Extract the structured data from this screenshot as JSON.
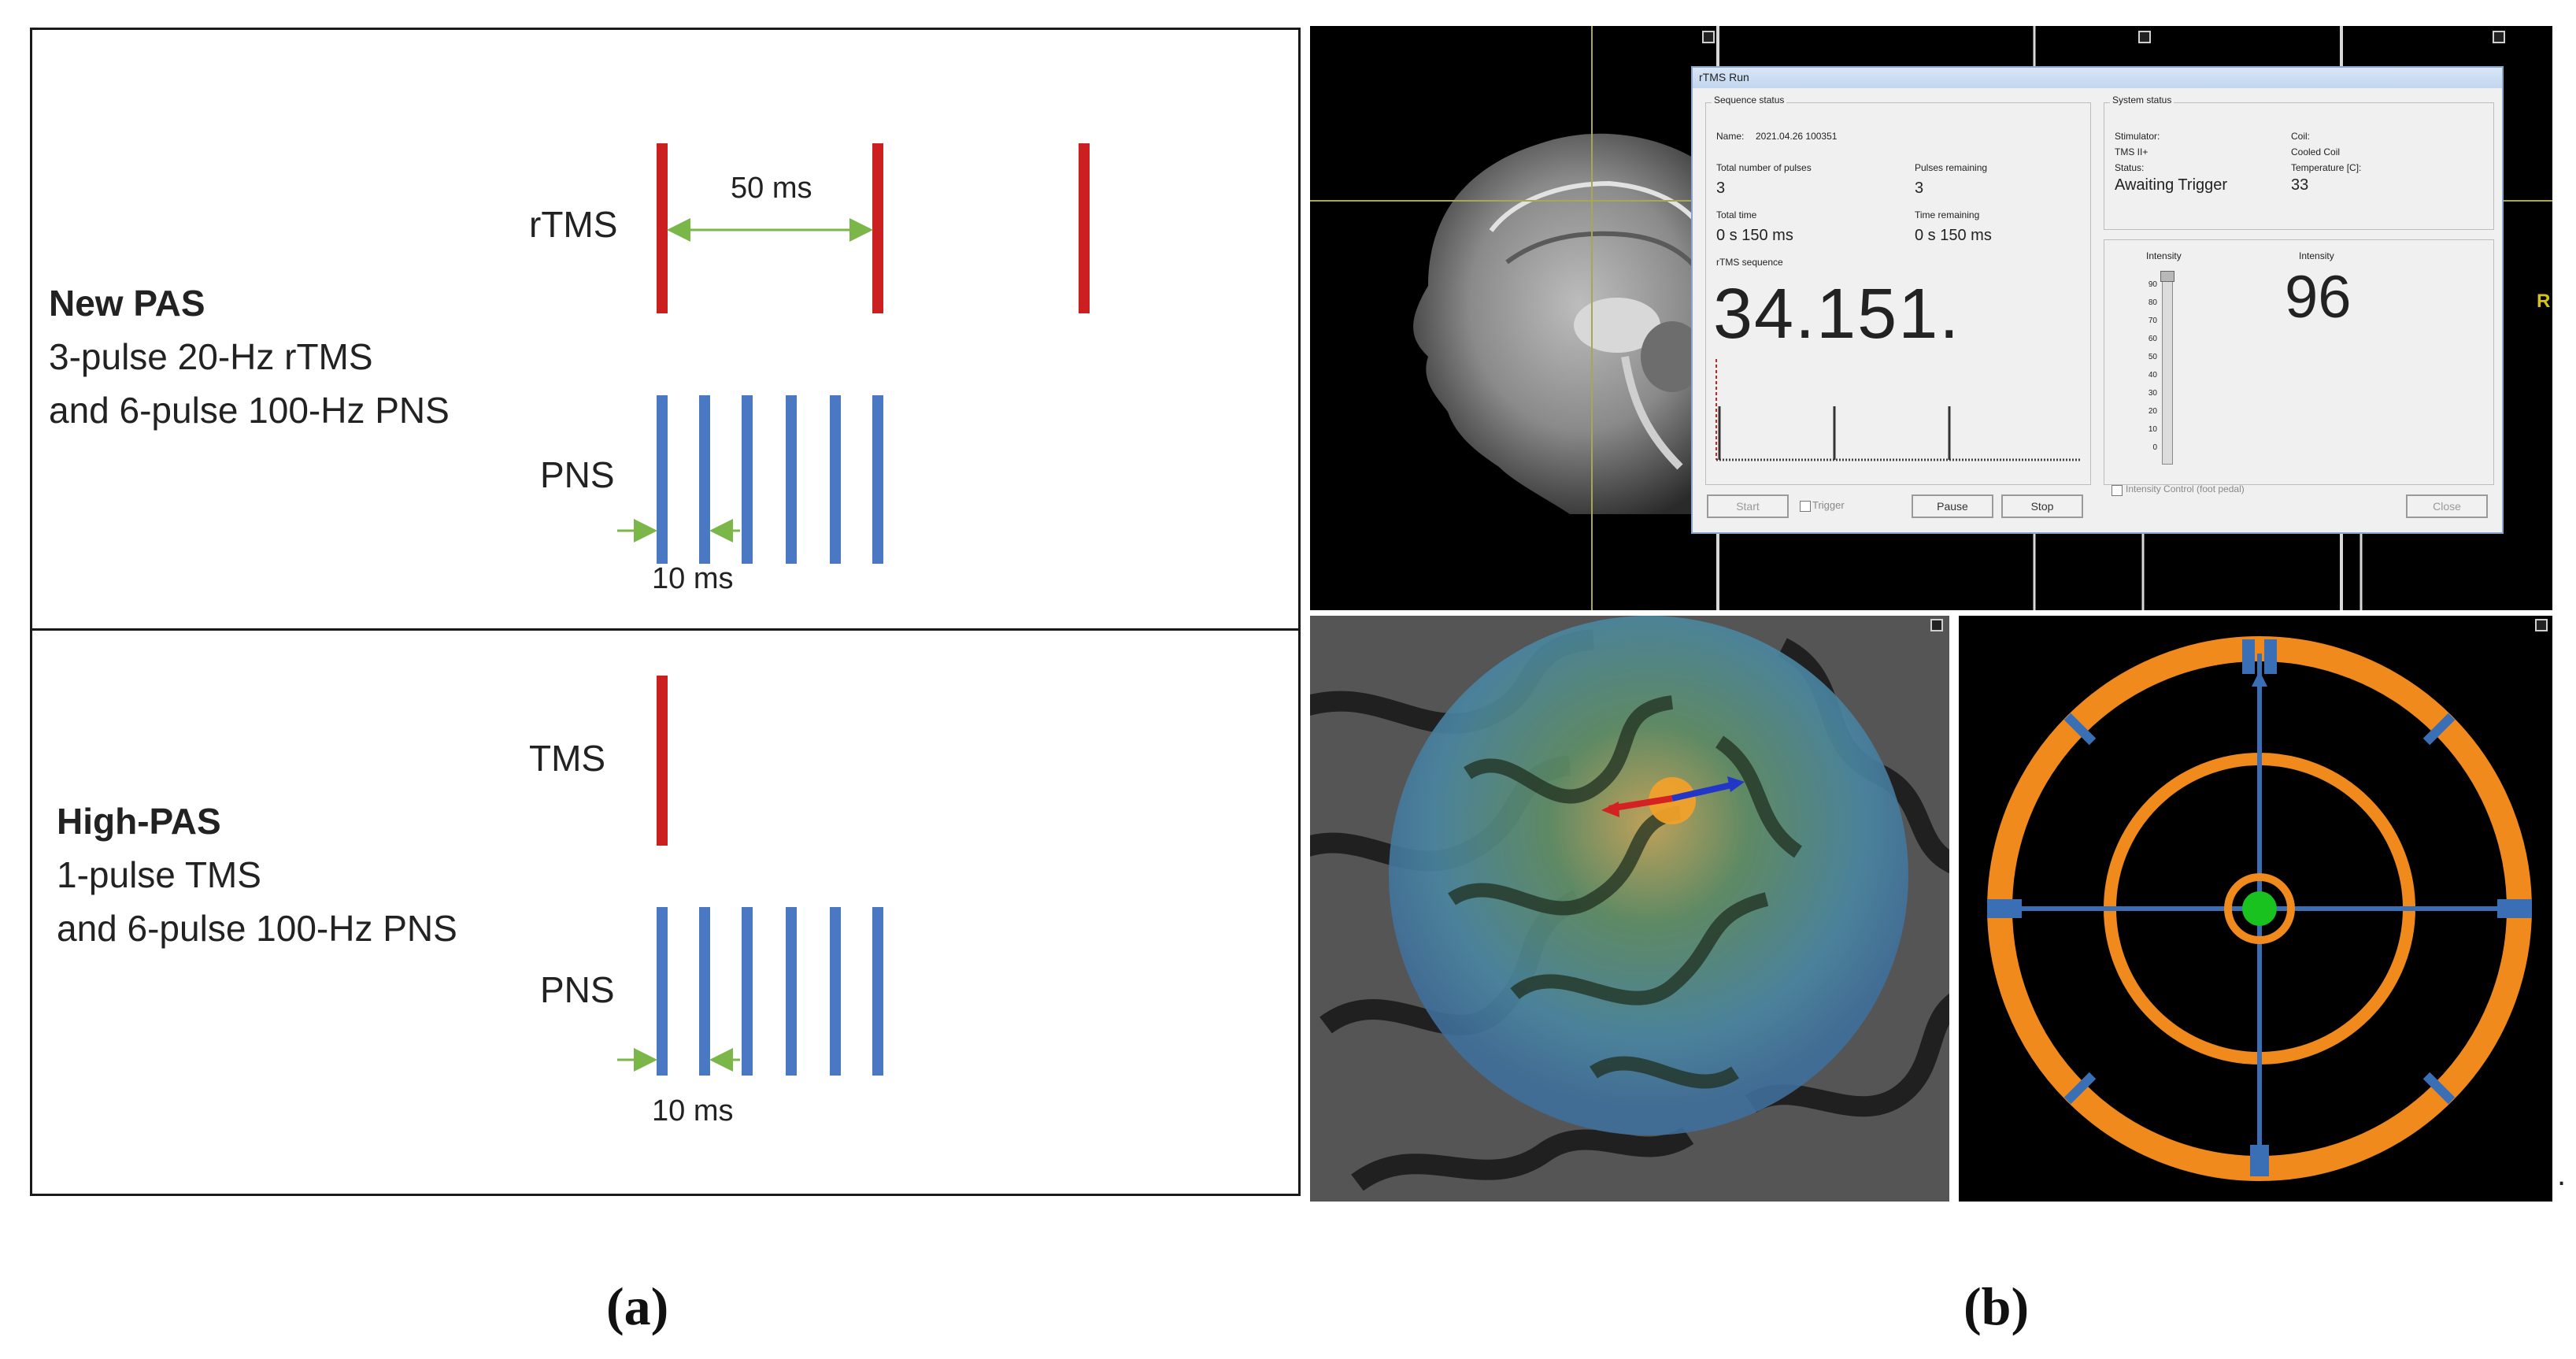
{
  "panel_a": {
    "caption": "(a)",
    "top": {
      "title": "New PAS",
      "line1": "3-pulse 20-Hz rTMS",
      "line2": "and 6-pulse 100-Hz PNS",
      "rtms_label": "rTMS",
      "pns_label": "PNS",
      "interval_rtms": "50 ms",
      "interval_pns": "10 ms"
    },
    "bottom": {
      "title": "High-PAS",
      "line1": "1-pulse TMS",
      "line2": "and 6-pulse 100-Hz PNS",
      "tms_label": "TMS",
      "pns_label": "PNS",
      "interval_pns": "10 ms"
    },
    "colors": {
      "tms": "#cc1f1f",
      "pns": "#4a78c2",
      "arrow": "#7ab648"
    }
  },
  "panel_b": {
    "caption": "(b)",
    "trailing_mark": ".",
    "side_marker": "R",
    "dialog": {
      "title": "rTMS Run",
      "sequence_status": "Sequence status",
      "name_label": "Name:",
      "name_value": "2021.04.26 100351",
      "total_pulses_label": "Total number of pulses",
      "total_pulses_value": "3",
      "pulses_remaining_label": "Pulses remaining",
      "pulses_remaining_value": "3",
      "total_time_label": "Total time",
      "total_time_value": "0 s 150 ms",
      "time_remaining_label": "Time remaining",
      "time_remaining_value": "0 s 150 ms",
      "rtms_sequence_label": "rTMS sequence",
      "big_readout": "34.151.",
      "system_status": "System status",
      "stimulator_label": "Stimulator:",
      "stimulator_value": "TMS II+",
      "status_label": "Status:",
      "status_value": "Awaiting Trigger",
      "coil_label": "Coil:",
      "coil_value": "Cooled Coil",
      "temperature_label": "Temperature [C]:",
      "temperature_value": "33",
      "intensity_label_left": "Intensity",
      "intensity_label_right": "Intensity",
      "intensity_value": "96",
      "intensity_ticks": [
        "90",
        "80",
        "70",
        "60",
        "50",
        "40",
        "30",
        "20",
        "10",
        "0"
      ],
      "start_button": "Start",
      "trigger_checkbox": "Trigger",
      "pause_button": "Pause",
      "stop_button": "Stop",
      "intensity_control_checkbox": "Intensity Control (foot pedal)",
      "close_button": "Close"
    },
    "colors": {
      "target_ring": "#f08a1c",
      "target_cross": "#3b6fb5",
      "target_center": "#19c21f"
    }
  }
}
